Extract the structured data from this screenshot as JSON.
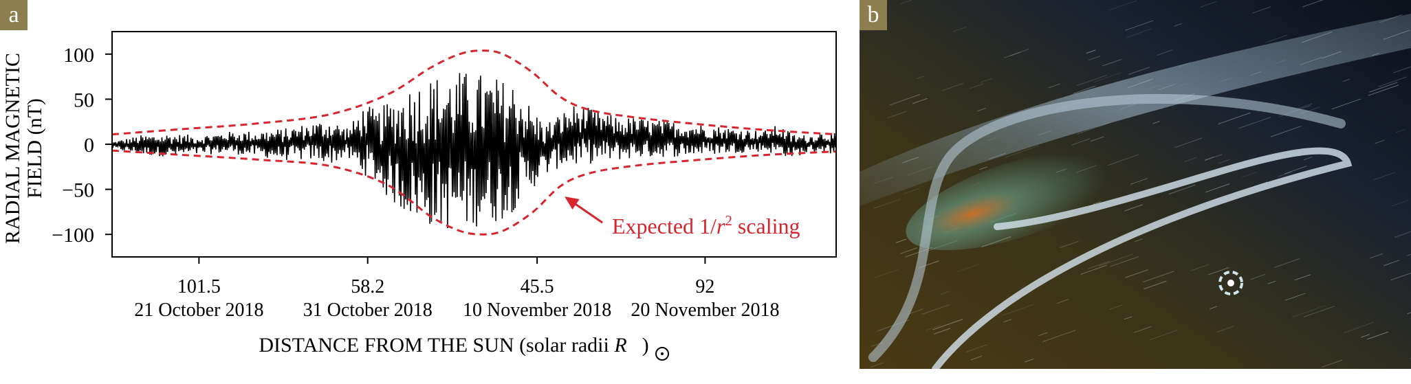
{
  "panel_labels": {
    "a": "a",
    "b": "b"
  },
  "colors": {
    "data": "#000000",
    "envelope": "#d7242d",
    "badge": "#8c7e4e",
    "space": "#0e1520"
  },
  "chart_data": {
    "type": "line",
    "panel": "a",
    "ylabel_line1": "RADIAL MAGNETIC",
    "ylabel_line2": "FIELD (nT)",
    "xlabel_main": "DISTANCE FROM THE SUN (solar radii ",
    "xlabel_symbol": "R",
    "xlabel_close": ")",
    "ylim": [
      -125,
      125
    ],
    "xlim": [
      0,
      100
    ],
    "yticks": [
      {
        "value": 100,
        "label": "100"
      },
      {
        "value": 50,
        "label": "50"
      },
      {
        "value": 0,
        "label": "0"
      },
      {
        "value": -50,
        "label": "−50"
      },
      {
        "value": -100,
        "label": "−100"
      }
    ],
    "xticks": [
      {
        "pos": 12.0,
        "distance": "101.5",
        "date": "21 October 2018"
      },
      {
        "pos": 35.3,
        "distance": "58.2",
        "date": "31 October 2018"
      },
      {
        "pos": 58.7,
        "distance": "45.5",
        "date": "10 November 2018"
      },
      {
        "pos": 81.9,
        "distance": "92",
        "date": "20 November 2018"
      }
    ],
    "envelope": {
      "name": "Expected 1/r² scaling",
      "peak_x": 51.0,
      "x": [
        0,
        10,
        20,
        30,
        38,
        44,
        48,
        51,
        54,
        58,
        62,
        66,
        72,
        80,
        90,
        100
      ],
      "upper": [
        11,
        17,
        23,
        33,
        55,
        85,
        100,
        104,
        100,
        80,
        52,
        38,
        30,
        23,
        16,
        11
      ],
      "lower": [
        -7,
        -12,
        -17,
        -24,
        -45,
        -80,
        -96,
        -100,
        -96,
        -76,
        -46,
        -32,
        -24,
        -18,
        -12,
        -8
      ]
    },
    "series": [
      {
        "name": "Radial magnetic field",
        "x": [
          0,
          4,
          8,
          12,
          16,
          20,
          24,
          28,
          30,
          31,
          32,
          33,
          34,
          35,
          36,
          37,
          38,
          40,
          42,
          44,
          46,
          48,
          50,
          52,
          54,
          56,
          58,
          60,
          62,
          64,
          66,
          68,
          70,
          72,
          74,
          78,
          82,
          86,
          90,
          92,
          94,
          96,
          98,
          100
        ],
        "upper": [
          3,
          10,
          12,
          10,
          14,
          15,
          18,
          25,
          28,
          25,
          20,
          22,
          35,
          45,
          40,
          38,
          48,
          60,
          70,
          75,
          80,
          82,
          80,
          78,
          72,
          70,
          40,
          25,
          35,
          45,
          40,
          35,
          30,
          30,
          28,
          25,
          22,
          18,
          15,
          22,
          12,
          10,
          14,
          12
        ],
        "lower": [
          -5,
          -12,
          -14,
          -12,
          -10,
          -14,
          -18,
          -18,
          -22,
          -20,
          -15,
          -20,
          -30,
          -35,
          -40,
          -50,
          -60,
          -75,
          -85,
          -92,
          -95,
          -98,
          -92,
          -90,
          -85,
          -70,
          -50,
          -35,
          -25,
          -25,
          -22,
          -20,
          -18,
          -16,
          -15,
          -14,
          -12,
          -10,
          -8,
          -12,
          -15,
          -10,
          -8,
          -12
        ]
      }
    ],
    "annotation": {
      "text_main": "Expected 1/",
      "text_r": "r",
      "text_exp": "2",
      "text_tail": " scaling",
      "arrow_to_x": 62.5,
      "arrow_to_y": -58
    }
  },
  "illustration": {
    "description_terms": [
      "sun",
      "solar wind",
      "magnetic field line",
      "spacecraft"
    ]
  }
}
